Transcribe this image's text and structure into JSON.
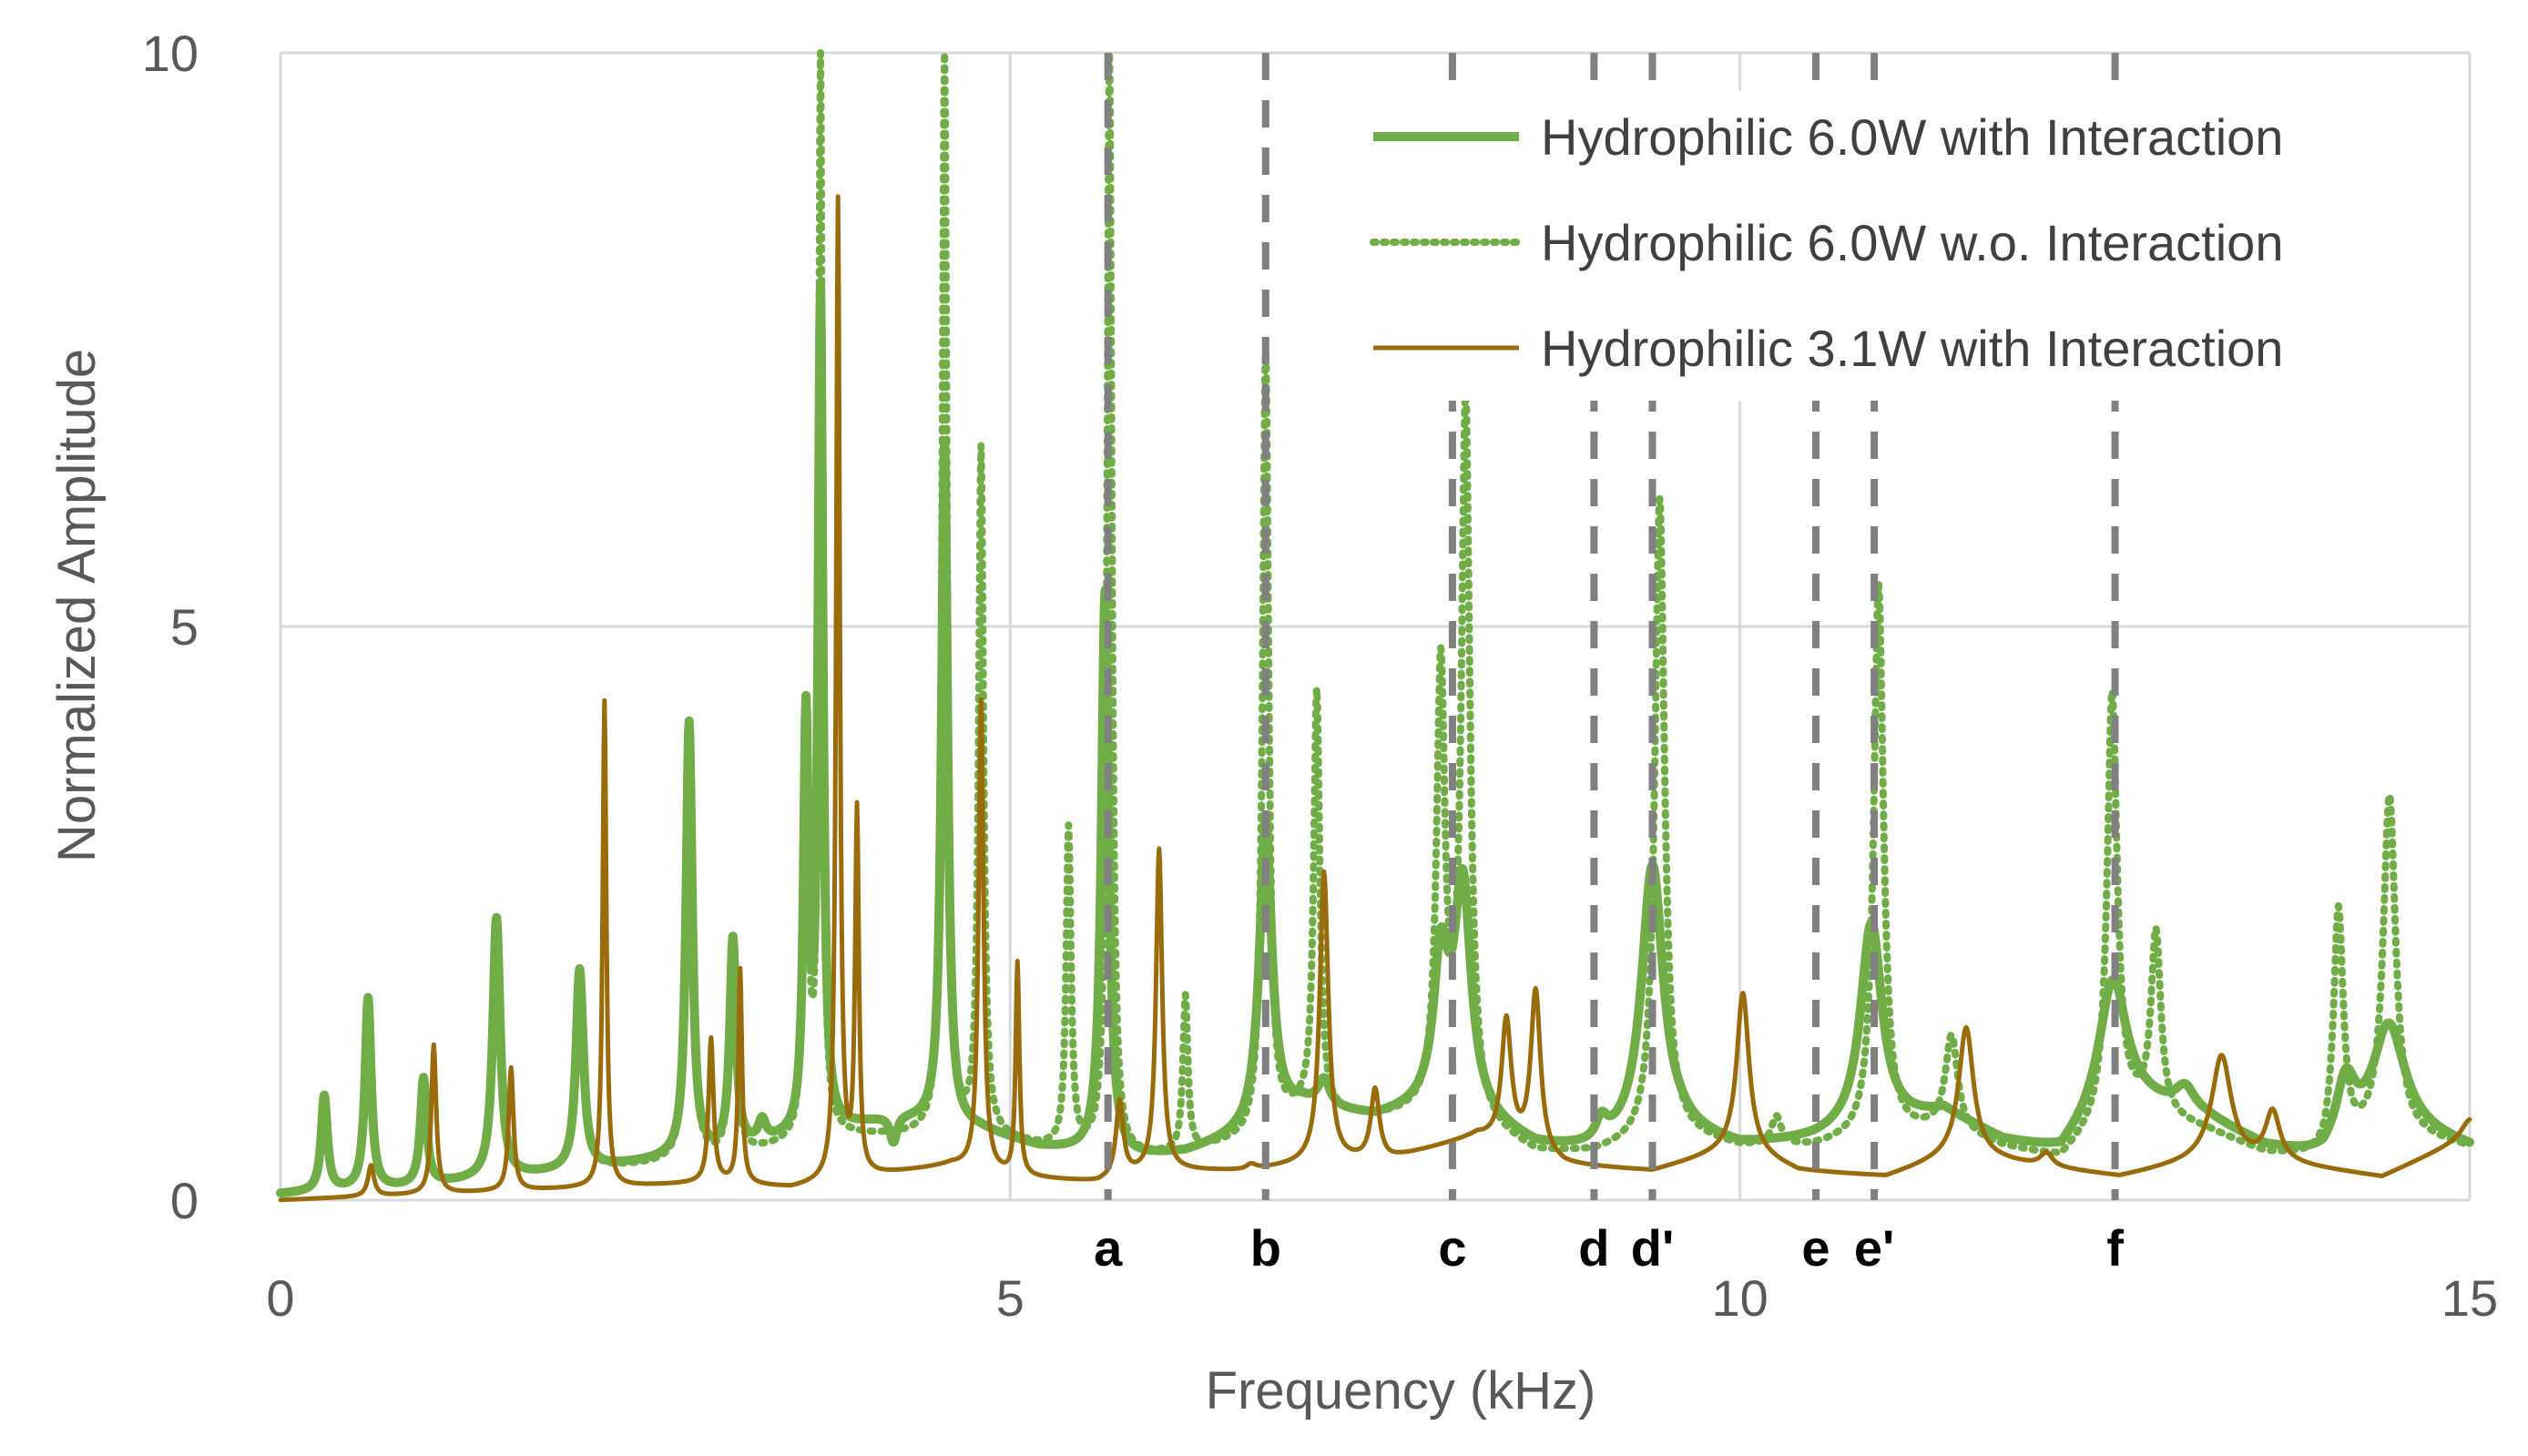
{
  "chart_data": {
    "type": "line",
    "title": "",
    "xlabel": "Frequency (kHz)",
    "ylabel": "Normalized Amplitude",
    "xlim": [
      0,
      15
    ],
    "ylim": [
      0,
      10
    ],
    "xticks": [
      0,
      5,
      10,
      15
    ],
    "yticks": [
      0,
      5,
      10
    ],
    "grid": true,
    "legend_position": "top-right",
    "colors": {
      "green": "#70AD47",
      "brown": "#9A6B0B",
      "marker": "#808080",
      "grid": "#D9D9D9",
      "text": "#595959"
    },
    "markers": [
      {
        "label": "a",
        "x": 5.67
      },
      {
        "label": "b",
        "x": 6.75
      },
      {
        "label": "c",
        "x": 8.03
      },
      {
        "label": "d",
        "x": 9.0
      },
      {
        "label": "d'",
        "x": 9.4
      },
      {
        "label": "e",
        "x": 10.52
      },
      {
        "label": "e'",
        "x": 10.92
      },
      {
        "label": "f",
        "x": 12.57
      }
    ],
    "series": [
      {
        "name": "Hydrophilic 6.0W with Interaction",
        "style": "solid-thick",
        "color": "#70AD47",
        "baseline": [
          [
            0,
            0.05
          ],
          [
            0.8,
            0.1
          ],
          [
            2.0,
            0.25
          ],
          [
            3.0,
            0.4
          ],
          [
            3.8,
            0.6
          ],
          [
            4.2,
            0.7
          ],
          [
            4.8,
            0.6
          ],
          [
            5.2,
            0.45
          ],
          [
            5.8,
            0.35
          ],
          [
            6.2,
            0.4
          ],
          [
            6.6,
            0.55
          ],
          [
            7.0,
            0.8
          ],
          [
            7.5,
            0.7
          ],
          [
            8.0,
            0.8
          ],
          [
            8.6,
            0.45
          ],
          [
            9.0,
            0.4
          ],
          [
            9.6,
            0.55
          ],
          [
            10.0,
            0.45
          ],
          [
            10.5,
            0.5
          ],
          [
            11.0,
            0.6
          ],
          [
            11.4,
            0.75
          ],
          [
            11.8,
            0.5
          ],
          [
            12.2,
            0.4
          ],
          [
            12.6,
            0.9
          ],
          [
            13.2,
            0.7
          ],
          [
            13.6,
            0.45
          ],
          [
            14.0,
            0.35
          ],
          [
            14.4,
            0.65
          ],
          [
            15.0,
            0.45
          ]
        ],
        "peaks": [
          [
            0.3,
            0.9,
            0.025
          ],
          [
            0.6,
            1.75,
            0.025
          ],
          [
            0.98,
            1.05,
            0.025
          ],
          [
            1.48,
            2.45,
            0.03
          ],
          [
            2.05,
            2.0,
            0.03
          ],
          [
            2.8,
            4.15,
            0.025
          ],
          [
            3.1,
            2.25,
            0.025
          ],
          [
            3.3,
            0.65,
            0.03
          ],
          [
            3.6,
            4.1,
            0.02
          ],
          [
            3.7,
            7.85,
            0.02
          ],
          [
            4.2,
            0.45,
            0.03
          ],
          [
            4.55,
            6.6,
            0.025
          ],
          [
            5.65,
            5.3,
            0.03
          ],
          [
            6.75,
            3.3,
            0.05
          ],
          [
            7.15,
            1.0,
            0.05
          ],
          [
            7.95,
            2.0,
            0.06
          ],
          [
            8.1,
            2.7,
            0.07
          ],
          [
            9.4,
            2.9,
            0.09
          ],
          [
            9.05,
            0.6,
            0.05
          ],
          [
            10.9,
            2.4,
            0.09
          ],
          [
            12.55,
            1.9,
            0.11
          ],
          [
            13.05,
            0.95,
            0.08
          ],
          [
            14.45,
            1.5,
            0.13
          ],
          [
            14.15,
            1.0,
            0.08
          ]
        ]
      },
      {
        "name": "Hydrophilic 6.0W w.o. Interaction",
        "style": "dotted",
        "color": "#70AD47",
        "baseline": [
          [
            0,
            0.05
          ],
          [
            0.8,
            0.1
          ],
          [
            2.0,
            0.25
          ],
          [
            3.0,
            0.35
          ],
          [
            3.8,
            0.55
          ],
          [
            4.2,
            0.55
          ],
          [
            4.8,
            0.55
          ],
          [
            5.2,
            0.45
          ],
          [
            5.8,
            0.35
          ],
          [
            6.2,
            0.4
          ],
          [
            6.6,
            0.5
          ],
          [
            7.0,
            0.75
          ],
          [
            7.5,
            0.7
          ],
          [
            8.0,
            0.75
          ],
          [
            8.6,
            0.4
          ],
          [
            9.0,
            0.4
          ],
          [
            9.6,
            0.55
          ],
          [
            10.0,
            0.45
          ],
          [
            10.5,
            0.45
          ],
          [
            11.0,
            0.55
          ],
          [
            11.4,
            0.6
          ],
          [
            11.8,
            0.45
          ],
          [
            12.2,
            0.35
          ],
          [
            12.6,
            0.8
          ],
          [
            13.2,
            0.6
          ],
          [
            13.6,
            0.4
          ],
          [
            14.0,
            0.35
          ],
          [
            14.4,
            0.6
          ],
          [
            15.0,
            0.45
          ]
        ],
        "peaks": [
          [
            0.3,
            0.9,
            0.025
          ],
          [
            0.6,
            1.7,
            0.025
          ],
          [
            0.98,
            1.05,
            0.025
          ],
          [
            1.48,
            2.4,
            0.03
          ],
          [
            2.05,
            1.9,
            0.03
          ],
          [
            2.8,
            4.1,
            0.025
          ],
          [
            3.1,
            2.2,
            0.025
          ],
          [
            3.6,
            4.0,
            0.02
          ],
          [
            3.7,
            10.0,
            0.015
          ],
          [
            4.55,
            10.0,
            0.02
          ],
          [
            4.8,
            6.5,
            0.02
          ],
          [
            5.4,
            3.2,
            0.02
          ],
          [
            5.68,
            10.0,
            0.02
          ],
          [
            6.2,
            1.75,
            0.02
          ],
          [
            6.75,
            7.4,
            0.025
          ],
          [
            7.1,
            4.4,
            0.025
          ],
          [
            7.95,
            4.55,
            0.035
          ],
          [
            8.12,
            6.9,
            0.035
          ],
          [
            9.45,
            6.1,
            0.04
          ],
          [
            10.25,
            0.7,
            0.04
          ],
          [
            10.95,
            5.35,
            0.04
          ],
          [
            11.45,
            1.4,
            0.05
          ],
          [
            12.55,
            4.4,
            0.04
          ],
          [
            12.85,
            2.3,
            0.04
          ],
          [
            14.1,
            2.5,
            0.04
          ],
          [
            14.45,
            3.5,
            0.05
          ]
        ]
      },
      {
        "name": "Hydrophilic 3.1W with Interaction",
        "style": "solid-thin",
        "color": "#9A6B0B",
        "baseline": [
          [
            0,
            0.0
          ],
          [
            1.0,
            0.05
          ],
          [
            2.0,
            0.1
          ],
          [
            3.0,
            0.15
          ],
          [
            3.5,
            0.1
          ],
          [
            4.0,
            0.2
          ],
          [
            4.6,
            0.3
          ],
          [
            5.0,
            0.2
          ],
          [
            5.6,
            0.15
          ],
          [
            6.0,
            0.25
          ],
          [
            6.6,
            0.25
          ],
          [
            7.0,
            0.3
          ],
          [
            7.6,
            0.35
          ],
          [
            8.2,
            0.55
          ],
          [
            8.8,
            0.3
          ],
          [
            9.4,
            0.25
          ],
          [
            10.0,
            0.45
          ],
          [
            10.4,
            0.25
          ],
          [
            11.0,
            0.2
          ],
          [
            11.5,
            0.4
          ],
          [
            12.0,
            0.3
          ],
          [
            12.6,
            0.2
          ],
          [
            13.2,
            0.35
          ],
          [
            13.8,
            0.3
          ],
          [
            14.4,
            0.2
          ],
          [
            15.0,
            0.55
          ]
        ],
        "peaks": [
          [
            0.62,
            0.3,
            0.025
          ],
          [
            1.05,
            1.35,
            0.02
          ],
          [
            1.58,
            1.15,
            0.02
          ],
          [
            2.22,
            4.35,
            0.015
          ],
          [
            2.95,
            1.4,
            0.02
          ],
          [
            3.15,
            2.0,
            0.015
          ],
          [
            3.82,
            8.7,
            0.015
          ],
          [
            3.95,
            3.35,
            0.015
          ],
          [
            4.8,
            4.35,
            0.02
          ],
          [
            5.05,
            2.05,
            0.015
          ],
          [
            5.75,
            0.85,
            0.03
          ],
          [
            6.02,
            3.05,
            0.025
          ],
          [
            6.65,
            0.3,
            0.04
          ],
          [
            7.15,
            2.85,
            0.035
          ],
          [
            7.5,
            0.95,
            0.035
          ],
          [
            8.4,
            1.55,
            0.04
          ],
          [
            8.6,
            1.8,
            0.04
          ],
          [
            10.02,
            1.8,
            0.05
          ],
          [
            11.55,
            1.5,
            0.06
          ],
          [
            12.1,
            0.4,
            0.05
          ],
          [
            13.3,
            1.25,
            0.08
          ],
          [
            13.65,
            0.75,
            0.06
          ],
          [
            15.0,
            0.7,
            0.07
          ]
        ]
      }
    ]
  }
}
